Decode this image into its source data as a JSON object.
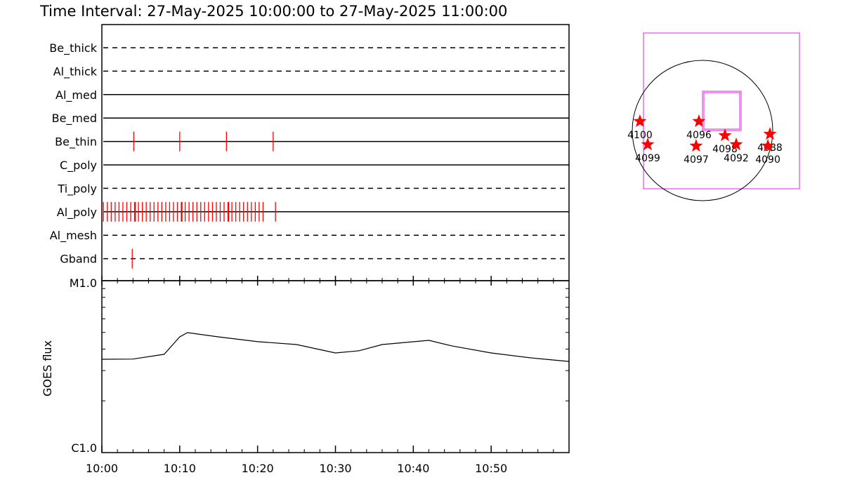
{
  "chart_data": [
    {
      "type": "timeline",
      "title": "Time Interval: 27-May-2025 10:00:00 to 27-May-2025 11:00:00",
      "xlim": [
        0,
        60
      ],
      "series": [
        {
          "name": "Be_thick",
          "style": "dashed",
          "color": "#ff0000",
          "values": []
        },
        {
          "name": "Al_thick",
          "style": "dashed",
          "color": "#ff0000",
          "values": []
        },
        {
          "name": "Al_med",
          "style": "solid",
          "color": "#ff0000",
          "values": []
        },
        {
          "name": "Be_med",
          "style": "solid",
          "color": "#ff0000",
          "values": []
        },
        {
          "name": "Be_thin",
          "style": "solid",
          "color": "#ff0000",
          "values": [
            4.1,
            10.0,
            16.0,
            22.0
          ]
        },
        {
          "name": "C_poly",
          "style": "solid",
          "color": "#ff0000",
          "values": []
        },
        {
          "name": "Ti_poly",
          "style": "dashed",
          "color": "#ff0000",
          "values": []
        },
        {
          "name": "Al_poly",
          "style": "solid",
          "color": "#ff0000",
          "values": [
            0.2,
            0.7,
            1.2,
            1.7,
            2.2,
            2.7,
            3.2,
            3.7,
            4.2,
            4.3,
            4.7,
            5.2,
            5.7,
            6.2,
            6.7,
            7.2,
            7.7,
            8.2,
            8.7,
            9.2,
            9.7,
            10.2,
            10.3,
            10.7,
            11.2,
            11.7,
            12.2,
            12.7,
            13.2,
            13.7,
            14.2,
            14.7,
            15.2,
            15.7,
            16.2,
            16.3,
            16.7,
            17.2,
            17.7,
            18.2,
            18.7,
            19.2,
            19.7,
            20.2,
            20.7,
            22.3
          ]
        },
        {
          "name": "Al_mesh",
          "style": "dashed",
          "color": "#ff0000",
          "values": []
        },
        {
          "name": "Gband",
          "style": "dashed",
          "color": "#ff0000",
          "values": [
            3.9
          ]
        }
      ]
    },
    {
      "type": "line",
      "ylabel": "GOES flux",
      "log_y": true,
      "color": "#000000",
      "xlim": [
        0,
        60
      ],
      "xticks": [
        {
          "value": 0,
          "label": "10:00"
        },
        {
          "value": 10,
          "label": "10:10"
        },
        {
          "value": 20,
          "label": "10:20"
        },
        {
          "value": 30,
          "label": "10:30"
        },
        {
          "value": 40,
          "label": "10:40"
        },
        {
          "value": 50,
          "label": "10:50"
        }
      ],
      "xminorticks": [
        2,
        4,
        6,
        8,
        12,
        14,
        16,
        18,
        22,
        24,
        26,
        28,
        32,
        34,
        36,
        38,
        42,
        44,
        46,
        48,
        52,
        54,
        56,
        58
      ],
      "ylim": [
        1e-06,
        1e-05
      ],
      "yticks": [
        {
          "value": 1e-06,
          "label": "C1.0"
        },
        {
          "value": 1e-05,
          "label": "M1.0"
        }
      ],
      "yminorticks": [
        2e-06,
        3e-06,
        4e-06,
        5e-06,
        6e-06,
        7e-06,
        8e-06,
        9e-06
      ],
      "x": [
        0,
        4,
        8,
        10,
        11,
        15,
        20,
        25,
        30,
        33,
        36,
        42,
        45,
        50,
        55,
        60
      ],
      "values": [
        3.49e-06,
        3.5e-06,
        3.73e-06,
        4.71e-06,
        4.99e-06,
        4.71e-06,
        4.42e-06,
        4.25e-06,
        3.8e-06,
        3.91e-06,
        4.25e-06,
        4.5e-06,
        4.17e-06,
        3.8e-06,
        3.56e-06,
        3.39e-06
      ]
    },
    {
      "type": "scatter",
      "color": "#ff0000",
      "categories": [
        "4100",
        "4099",
        "4096",
        "4097",
        "4098",
        "4092",
        "4088",
        "4090"
      ],
      "x": [
        -846,
        -741,
        -48,
        -86,
        304,
        456,
        912,
        884
      ],
      "values": [
        124,
        -190,
        124,
        -209,
        -67,
        -190,
        -48,
        -209
      ]
    }
  ]
}
